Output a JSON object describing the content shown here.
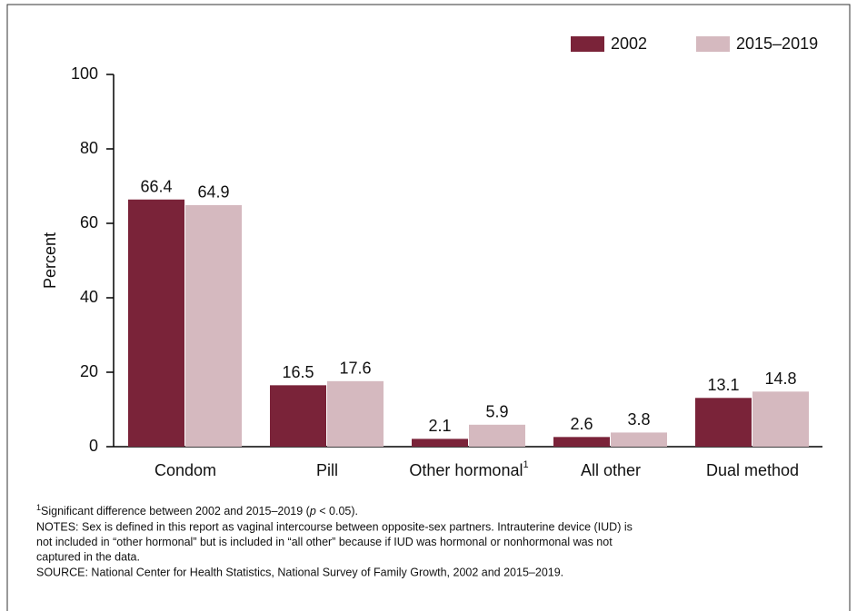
{
  "chart_data": {
    "type": "bar",
    "categories": [
      "Condom",
      "Pill",
      "Other hormonal",
      "All other",
      "Dual method"
    ],
    "category_superscripts": [
      null,
      null,
      "1",
      null,
      null
    ],
    "series": [
      {
        "name": "2002",
        "color": "#7a2339",
        "values": [
          66.4,
          16.5,
          2.1,
          2.6,
          13.1
        ]
      },
      {
        "name": "2015–2019",
        "color": "#d5b9bf",
        "values": [
          64.9,
          17.6,
          5.9,
          3.8,
          14.8
        ]
      }
    ],
    "y_label": "Percent",
    "ylim": [
      0,
      100
    ],
    "yticks": [
      0,
      20,
      40,
      60,
      80,
      100
    ],
    "legend": "top-right",
    "footnote": {
      "marker": "1",
      "parts": [
        "Significant difference between 2002 and 2015–2019 (",
        "p",
        " < 0.05)."
      ]
    },
    "notes": [
      "NOTES: Sex is defined in this report as vaginal intercourse between opposite-sex partners. Intrauterine device (IUD) is",
      "not included in “other hormonal” but is included in “all other” because if IUD was hormonal or nonhormonal was not",
      "captured in the data."
    ],
    "source": "SOURCE: National Center for Health Statistics, National Survey of Family Growth, 2002 and 2015–2019."
  }
}
